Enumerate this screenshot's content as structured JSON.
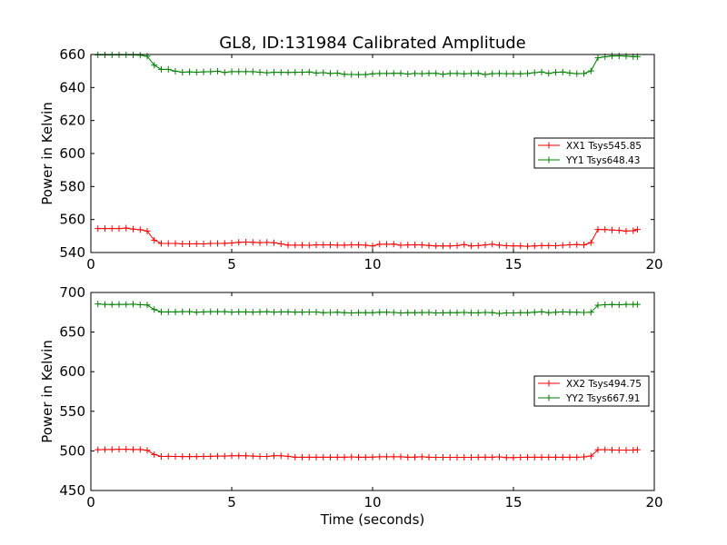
{
  "chart_data": [
    {
      "type": "line",
      "title": "GL8, ID:131984 Calibrated Amplitude",
      "xlabel": "",
      "ylabel": "Power in Kelvin",
      "xlim": [
        0,
        20
      ],
      "ylim": [
        540,
        660
      ],
      "xticks": [
        "0",
        "5",
        "10",
        "15",
        "20"
      ],
      "yticks": [
        "540",
        "560",
        "580",
        "600",
        "620",
        "640",
        "660"
      ],
      "grid": false,
      "legend_position": "center-right",
      "x": [
        0.25,
        0.5,
        0.75,
        1.0,
        1.25,
        1.5,
        1.75,
        2.0,
        2.25,
        2.5,
        2.75,
        3.0,
        3.25,
        3.5,
        3.75,
        4.0,
        4.25,
        4.5,
        4.75,
        5.0,
        5.25,
        5.5,
        5.75,
        6.0,
        6.25,
        6.5,
        6.75,
        7.0,
        7.25,
        7.5,
        7.75,
        8.0,
        8.25,
        8.5,
        8.75,
        9.0,
        9.25,
        9.5,
        9.75,
        10.0,
        10.25,
        10.5,
        10.75,
        11.0,
        11.25,
        11.5,
        11.75,
        12.0,
        12.25,
        12.5,
        12.75,
        13.0,
        13.25,
        13.5,
        13.75,
        14.0,
        14.25,
        14.5,
        14.75,
        15.0,
        15.25,
        15.5,
        15.75,
        16.0,
        16.25,
        16.5,
        16.75,
        17.0,
        17.25,
        17.5,
        17.75,
        18.0,
        18.25,
        18.5,
        18.75,
        19.0,
        19.25,
        19.4
      ],
      "series": [
        {
          "name": "XX1 Tsys545.85",
          "color": "#ff0000",
          "values": [
            554.5,
            554.5,
            554.5,
            554.5,
            554.8,
            554.2,
            553.8,
            553.0,
            547.5,
            545.5,
            545.5,
            545.5,
            545.2,
            545.2,
            545.3,
            545.2,
            545.5,
            545.5,
            545.6,
            545.8,
            546.2,
            546.3,
            546.2,
            546.0,
            546.1,
            545.9,
            545.2,
            544.5,
            544.5,
            544.5,
            544.4,
            544.6,
            544.6,
            544.6,
            544.5,
            544.5,
            544.6,
            544.6,
            544.5,
            544.0,
            545.0,
            545.0,
            545.1,
            544.4,
            544.6,
            544.6,
            544.6,
            544.3,
            544.0,
            544.0,
            544.0,
            544.2,
            544.8,
            544.0,
            544.2,
            544.6,
            545.0,
            544.5,
            544.1,
            544.0,
            544.0,
            543.8,
            544.0,
            544.2,
            544.2,
            544.1,
            544.4,
            544.7,
            544.8,
            544.6,
            546.0,
            554.0,
            553.9,
            553.6,
            553.4,
            553.0,
            553.2,
            554.0
          ]
        },
        {
          "name": "YY1 Tsys648.43",
          "color": "#008000",
          "values": [
            659.7,
            659.7,
            659.7,
            659.8,
            659.8,
            659.7,
            659.6,
            659.0,
            653.5,
            651.0,
            651.0,
            649.9,
            649.3,
            649.5,
            649.3,
            649.5,
            649.6,
            649.9,
            649.1,
            649.6,
            649.6,
            649.6,
            649.6,
            649.3,
            648.9,
            649.2,
            649.2,
            649.1,
            649.2,
            649.3,
            649.4,
            648.8,
            649.0,
            648.5,
            648.7,
            648.0,
            647.9,
            647.8,
            647.8,
            648.3,
            648.5,
            648.5,
            648.6,
            648.6,
            648.2,
            648.5,
            648.4,
            648.6,
            648.6,
            648.0,
            648.5,
            648.5,
            648.3,
            648.5,
            648.6,
            647.9,
            648.4,
            648.5,
            648.4,
            648.4,
            648.3,
            648.5,
            649.0,
            649.4,
            648.6,
            649.2,
            649.4,
            648.8,
            648.4,
            648.5,
            650.0,
            658.0,
            658.6,
            659.1,
            659.2,
            659.0,
            658.7,
            658.7
          ]
        }
      ]
    },
    {
      "type": "line",
      "title": "",
      "xlabel": "Time (seconds)",
      "ylabel": "Power in Kelvin",
      "xlim": [
        0,
        20
      ],
      "ylim": [
        450,
        700
      ],
      "xticks": [
        "0",
        "5",
        "10",
        "15",
        "20"
      ],
      "yticks": [
        "450",
        "500",
        "550",
        "600",
        "650",
        "700"
      ],
      "grid": false,
      "legend_position": "center-right",
      "x": [
        0.25,
        0.5,
        0.75,
        1.0,
        1.25,
        1.5,
        1.75,
        2.0,
        2.25,
        2.5,
        2.75,
        3.0,
        3.25,
        3.5,
        3.75,
        4.0,
        4.25,
        4.5,
        4.75,
        5.0,
        5.25,
        5.5,
        5.75,
        6.0,
        6.25,
        6.5,
        6.75,
        7.0,
        7.25,
        7.5,
        7.75,
        8.0,
        8.25,
        8.5,
        8.75,
        9.0,
        9.25,
        9.5,
        9.75,
        10.0,
        10.25,
        10.5,
        10.75,
        11.0,
        11.25,
        11.5,
        11.75,
        12.0,
        12.25,
        12.5,
        12.75,
        13.0,
        13.25,
        13.5,
        13.75,
        14.0,
        14.25,
        14.5,
        14.75,
        15.0,
        15.25,
        15.5,
        15.75,
        16.0,
        16.25,
        16.5,
        16.75,
        17.0,
        17.25,
        17.5,
        17.75,
        18.0,
        18.25,
        18.5,
        18.75,
        19.0,
        19.25,
        19.4
      ],
      "series": [
        {
          "name": "XX2 Tsys494.75",
          "color": "#ff0000",
          "values": [
            501.5,
            501.8,
            501.8,
            502.0,
            502.0,
            501.8,
            501.8,
            500.8,
            495.5,
            493.0,
            493.2,
            493.0,
            492.8,
            492.8,
            492.8,
            493.0,
            493.2,
            493.4,
            493.5,
            493.8,
            493.8,
            493.8,
            493.5,
            493.0,
            493.0,
            493.8,
            493.8,
            493.2,
            492.0,
            492.0,
            492.0,
            492.0,
            492.0,
            492.0,
            492.0,
            492.0,
            492.5,
            492.0,
            492.0,
            492.2,
            492.6,
            492.6,
            492.6,
            492.6,
            492.0,
            492.2,
            492.6,
            492.0,
            491.8,
            491.8,
            491.8,
            491.8,
            491.8,
            491.8,
            492.0,
            492.0,
            492.0,
            492.5,
            491.6,
            491.6,
            491.8,
            492.0,
            492.0,
            492.0,
            492.0,
            492.0,
            492.0,
            492.0,
            492.0,
            492.4,
            493.5,
            501.5,
            501.6,
            501.2,
            501.0,
            501.0,
            501.0,
            501.5
          ]
        },
        {
          "name": "YY2 Tsys667.91",
          "color": "#008000",
          "values": [
            685.5,
            685.0,
            684.8,
            685.0,
            685.0,
            685.2,
            684.5,
            684.2,
            678.5,
            675.5,
            675.5,
            675.5,
            675.8,
            675.8,
            675.0,
            675.5,
            675.8,
            675.8,
            675.8,
            675.2,
            675.5,
            675.5,
            675.2,
            675.5,
            675.8,
            675.2,
            675.5,
            675.5,
            675.2,
            675.2,
            675.3,
            675.3,
            674.5,
            674.8,
            675.0,
            674.5,
            674.2,
            674.5,
            674.5,
            674.5,
            675.0,
            675.0,
            674.8,
            674.2,
            674.5,
            674.5,
            674.6,
            674.8,
            674.2,
            674.3,
            674.5,
            674.5,
            674.8,
            674.4,
            674.3,
            674.8,
            674.5,
            673.5,
            674.2,
            674.2,
            674.5,
            674.5,
            675.0,
            675.6,
            674.5,
            675.0,
            675.5,
            675.2,
            675.0,
            674.8,
            675.0,
            684.0,
            684.5,
            684.8,
            684.5,
            685.0,
            685.0,
            685.0
          ]
        }
      ]
    }
  ]
}
